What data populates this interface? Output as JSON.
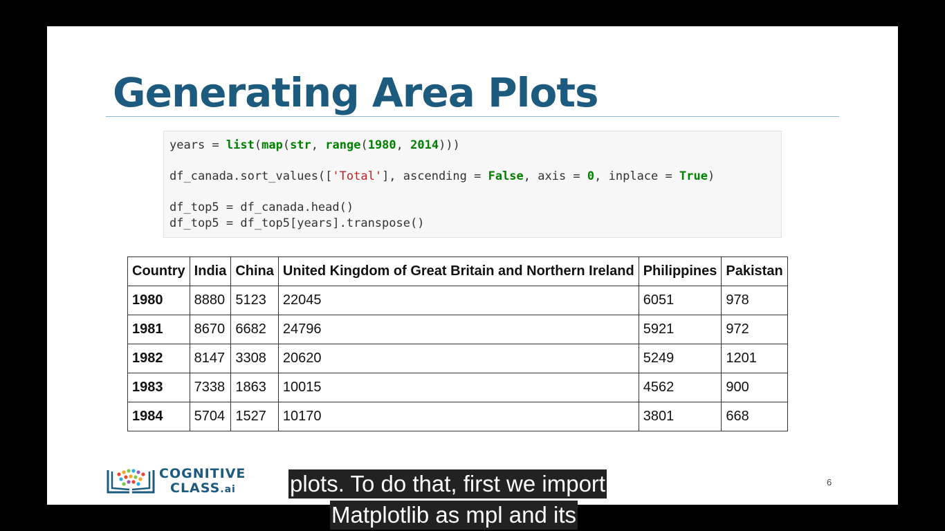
{
  "slide": {
    "title": "Generating Area Plots",
    "page_number": "6"
  },
  "code": {
    "line1": [
      "years = ",
      {
        "kw": "list"
      },
      "(",
      {
        "kw": "map"
      },
      "(",
      {
        "kw": "str"
      },
      ", ",
      {
        "kw": "range"
      },
      "(",
      {
        "kw": "1980"
      },
      ", ",
      {
        "kw": "2014"
      },
      ")))"
    ],
    "line2": [
      "df_canada.sort_values([",
      {
        "st": "'Total'"
      },
      "], ascending = ",
      {
        "kw": "False"
      },
      ", axis = ",
      {
        "kw": "0"
      },
      ", inplace = ",
      {
        "kw": "True"
      },
      ")"
    ],
    "line3": [
      "df_top5 = df_canada.head()"
    ],
    "line4": [
      "df_top5 = df_top5[years].transpose()"
    ]
  },
  "table": {
    "headers": [
      "Country",
      "India",
      "China",
      "United Kingdom of Great Britain and Northern Ireland",
      "Philippines",
      "Pakistan"
    ],
    "rows": [
      [
        "1980",
        "8880",
        "5123",
        "22045",
        "6051",
        "978"
      ],
      [
        "1981",
        "8670",
        "6682",
        "24796",
        "5921",
        "972"
      ],
      [
        "1982",
        "8147",
        "3308",
        "20620",
        "5249",
        "1201"
      ],
      [
        "1983",
        "7338",
        "1863",
        "10015",
        "4562",
        "900"
      ],
      [
        "1984",
        "5704",
        "1527",
        "10170",
        "3801",
        "668"
      ]
    ]
  },
  "logo": {
    "line1": "COGNITIVE",
    "line2": "CLASS",
    "suffix": ".ai",
    "icon": "cognitive-class-books-icon"
  },
  "captions": {
    "line1": "plots. To do that, first we import",
    "line2": "Matplotlib as mpl and its"
  },
  "colors": {
    "title": "#1c5a7e",
    "keyword": "#008000",
    "string": "#ba2121"
  }
}
